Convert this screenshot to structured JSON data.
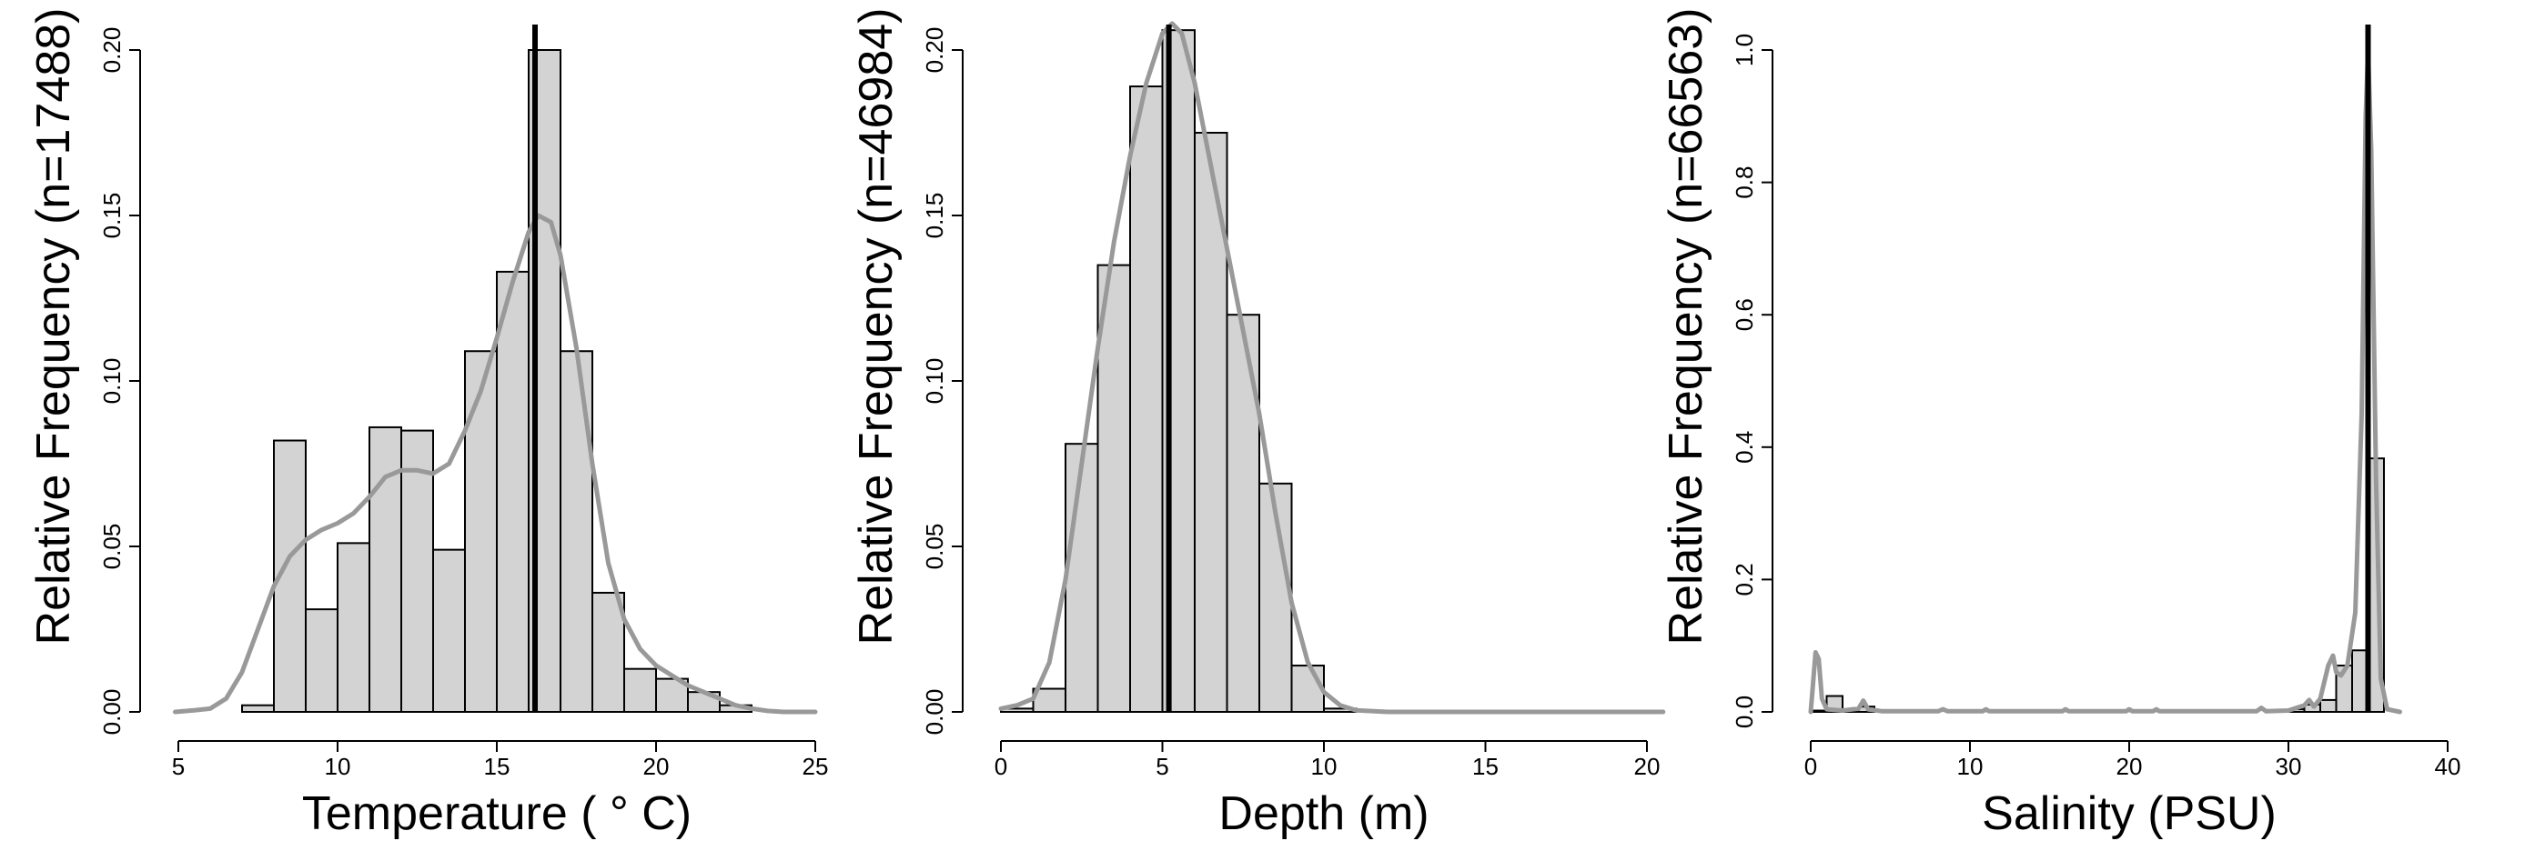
{
  "chart_data": [
    {
      "type": "bar",
      "xlabel": "Temperature  ( ° C)",
      "ylabel": "Relative Frequency (n=17488)",
      "xlim": [
        5,
        25
      ],
      "ylim": [
        0,
        0.2
      ],
      "xticks": [
        "5",
        "10",
        "15",
        "20",
        "25"
      ],
      "yticks": [
        "0.00",
        "0.05",
        "0.10",
        "0.15",
        "0.20"
      ],
      "bins": [
        {
          "x0": 7,
          "x1": 8,
          "value": 0.002
        },
        {
          "x0": 8,
          "x1": 9,
          "value": 0.082
        },
        {
          "x0": 9,
          "x1": 10,
          "value": 0.031
        },
        {
          "x0": 10,
          "x1": 11,
          "value": 0.051
        },
        {
          "x0": 11,
          "x1": 12,
          "value": 0.086
        },
        {
          "x0": 12,
          "x1": 13,
          "value": 0.085
        },
        {
          "x0": 13,
          "x1": 14,
          "value": 0.049
        },
        {
          "x0": 14,
          "x1": 15,
          "value": 0.109
        },
        {
          "x0": 15,
          "x1": 16,
          "value": 0.133
        },
        {
          "x0": 16,
          "x1": 17,
          "value": 0.2
        },
        {
          "x0": 17,
          "x1": 18,
          "value": 0.109
        },
        {
          "x0": 18,
          "x1": 19,
          "value": 0.036
        },
        {
          "x0": 19,
          "x1": 20,
          "value": 0.013
        },
        {
          "x0": 20,
          "x1": 21,
          "value": 0.01
        },
        {
          "x0": 21,
          "x1": 22,
          "value": 0.006
        },
        {
          "x0": 22,
          "x1": 23,
          "value": 0.002
        }
      ],
      "density": [
        [
          4.9,
          0.0
        ],
        [
          5.5,
          0.0005
        ],
        [
          6.0,
          0.001
        ],
        [
          6.5,
          0.004
        ],
        [
          7.0,
          0.012
        ],
        [
          7.5,
          0.025
        ],
        [
          8.0,
          0.038
        ],
        [
          8.5,
          0.047
        ],
        [
          9.0,
          0.052
        ],
        [
          9.5,
          0.055
        ],
        [
          10.0,
          0.057
        ],
        [
          10.5,
          0.06
        ],
        [
          11.0,
          0.065
        ],
        [
          11.5,
          0.071
        ],
        [
          12.0,
          0.073
        ],
        [
          12.5,
          0.073
        ],
        [
          13.0,
          0.072
        ],
        [
          13.5,
          0.075
        ],
        [
          14.0,
          0.085
        ],
        [
          14.5,
          0.097
        ],
        [
          15.0,
          0.113
        ],
        [
          15.5,
          0.13
        ],
        [
          16.0,
          0.145
        ],
        [
          16.3,
          0.15
        ],
        [
          16.7,
          0.148
        ],
        [
          17.0,
          0.138
        ],
        [
          17.5,
          0.11
        ],
        [
          18.0,
          0.075
        ],
        [
          18.5,
          0.045
        ],
        [
          19.0,
          0.028
        ],
        [
          19.5,
          0.019
        ],
        [
          20.0,
          0.014
        ],
        [
          20.5,
          0.011
        ],
        [
          21.0,
          0.008
        ],
        [
          21.5,
          0.006
        ],
        [
          22.0,
          0.004
        ],
        [
          22.5,
          0.002
        ],
        [
          23.0,
          0.001
        ],
        [
          23.5,
          0.0003
        ],
        [
          24.0,
          0.0
        ],
        [
          25.0,
          0.0
        ]
      ],
      "vline": 16.2
    },
    {
      "type": "bar",
      "xlabel": "Depth (m)",
      "ylabel": "Relative Frequency (n=46984)",
      "xlim": [
        0,
        20
      ],
      "ylim": [
        0,
        0.2
      ],
      "xticks": [
        "0",
        "5",
        "10",
        "15",
        "20"
      ],
      "yticks": [
        "0.00",
        "0.05",
        "0.10",
        "0.15",
        "0.20"
      ],
      "bins": [
        {
          "x0": 0,
          "x1": 1,
          "value": 0.001
        },
        {
          "x0": 1,
          "x1": 2,
          "value": 0.007
        },
        {
          "x0": 2,
          "x1": 3,
          "value": 0.081
        },
        {
          "x0": 3,
          "x1": 4,
          "value": 0.135
        },
        {
          "x0": 4,
          "x1": 5,
          "value": 0.189
        },
        {
          "x0": 5,
          "x1": 6,
          "value": 0.206
        },
        {
          "x0": 6,
          "x1": 7,
          "value": 0.175
        },
        {
          "x0": 7,
          "x1": 8,
          "value": 0.12
        },
        {
          "x0": 8,
          "x1": 9,
          "value": 0.069
        },
        {
          "x0": 9,
          "x1": 10,
          "value": 0.014
        },
        {
          "x0": 10,
          "x1": 11,
          "value": 0.001
        }
      ],
      "density": [
        [
          0.0,
          0.001
        ],
        [
          0.5,
          0.002
        ],
        [
          1.0,
          0.004
        ],
        [
          1.5,
          0.015
        ],
        [
          2.0,
          0.04
        ],
        [
          2.5,
          0.075
        ],
        [
          3.0,
          0.11
        ],
        [
          3.5,
          0.142
        ],
        [
          4.0,
          0.168
        ],
        [
          4.5,
          0.19
        ],
        [
          5.0,
          0.205
        ],
        [
          5.3,
          0.208
        ],
        [
          5.6,
          0.205
        ],
        [
          6.0,
          0.19
        ],
        [
          6.5,
          0.165
        ],
        [
          7.0,
          0.14
        ],
        [
          7.5,
          0.115
        ],
        [
          8.0,
          0.09
        ],
        [
          8.5,
          0.06
        ],
        [
          9.0,
          0.033
        ],
        [
          9.5,
          0.015
        ],
        [
          10.0,
          0.006
        ],
        [
          10.5,
          0.002
        ],
        [
          11.0,
          0.0005
        ],
        [
          12.0,
          0.0
        ],
        [
          20.5,
          0.0
        ]
      ],
      "vline": 5.2
    },
    {
      "type": "bar",
      "xlabel": "Salinity (PSU)",
      "ylabel": "Relative Frequency (n=66563)",
      "xlim": [
        0,
        40
      ],
      "ylim": [
        0,
        1.0
      ],
      "xticks": [
        "0",
        "10",
        "20",
        "30",
        "40"
      ],
      "yticks": [
        "0.0",
        "0.2",
        "0.4",
        "0.6",
        "0.8",
        "1.0"
      ],
      "bins": [
        {
          "x0": 0,
          "x1": 1,
          "value": 0.002
        },
        {
          "x0": 1,
          "x1": 2,
          "value": 0.024
        },
        {
          "x0": 2,
          "x1": 3,
          "value": 0.004
        },
        {
          "x0": 3,
          "x1": 4,
          "value": 0.008
        },
        {
          "x0": 30,
          "x1": 31,
          "value": 0.004
        },
        {
          "x0": 31,
          "x1": 32,
          "value": 0.011
        },
        {
          "x0": 32,
          "x1": 33,
          "value": 0.018
        },
        {
          "x0": 33,
          "x1": 34,
          "value": 0.07
        },
        {
          "x0": 34,
          "x1": 35,
          "value": 0.093
        },
        {
          "x0": 35,
          "x1": 36,
          "value": 0.383
        }
      ],
      "density": [
        [
          0.0,
          0.0
        ],
        [
          0.1,
          0.03
        ],
        [
          0.3,
          0.09
        ],
        [
          0.5,
          0.08
        ],
        [
          0.7,
          0.02
        ],
        [
          1.0,
          0.004
        ],
        [
          2.0,
          0.002
        ],
        [
          3.0,
          0.005
        ],
        [
          3.3,
          0.017
        ],
        [
          3.6,
          0.004
        ],
        [
          4.5,
          0.001
        ],
        [
          8.0,
          0.001
        ],
        [
          8.3,
          0.004
        ],
        [
          8.6,
          0.001
        ],
        [
          10.8,
          0.001
        ],
        [
          11.0,
          0.004
        ],
        [
          11.2,
          0.001
        ],
        [
          15.8,
          0.001
        ],
        [
          16.0,
          0.004
        ],
        [
          16.2,
          0.001
        ],
        [
          19.8,
          0.001
        ],
        [
          20.0,
          0.004
        ],
        [
          20.2,
          0.001
        ],
        [
          21.5,
          0.001
        ],
        [
          21.7,
          0.004
        ],
        [
          21.9,
          0.001
        ],
        [
          28.0,
          0.001
        ],
        [
          28.3,
          0.006
        ],
        [
          28.6,
          0.001
        ],
        [
          30.0,
          0.002
        ],
        [
          31.0,
          0.01
        ],
        [
          31.3,
          0.018
        ],
        [
          31.6,
          0.008
        ],
        [
          32.0,
          0.02
        ],
        [
          32.5,
          0.07
        ],
        [
          32.8,
          0.085
        ],
        [
          33.0,
          0.06
        ],
        [
          33.3,
          0.055
        ],
        [
          33.7,
          0.07
        ],
        [
          34.2,
          0.15
        ],
        [
          34.6,
          0.45
        ],
        [
          34.85,
          0.9
        ],
        [
          35.0,
          1.0
        ],
        [
          35.2,
          0.85
        ],
        [
          35.5,
          0.35
        ],
        [
          35.8,
          0.05
        ],
        [
          36.2,
          0.004
        ],
        [
          37.0,
          0.0
        ]
      ],
      "vline": 35.0
    }
  ]
}
